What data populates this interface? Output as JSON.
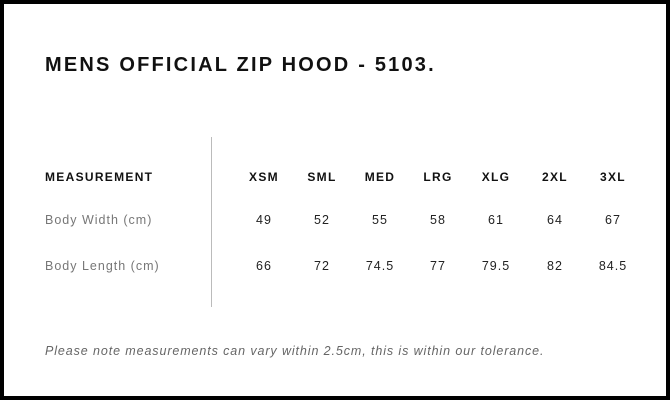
{
  "title": "MENS OFFICIAL ZIP HOOD - 5103.",
  "table": {
    "header_label": "MEASUREMENT",
    "sizes": [
      "XSM",
      "SML",
      "MED",
      "LRG",
      "XLG",
      "2XL",
      "3XL"
    ],
    "rows": [
      {
        "label": "Body Width (cm)",
        "values": [
          "49",
          "52",
          "55",
          "58",
          "61",
          "64",
          "67"
        ]
      },
      {
        "label": "Body Length (cm)",
        "values": [
          "66",
          "72",
          "74.5",
          "77",
          "79.5",
          "82",
          "84.5"
        ]
      }
    ]
  },
  "note": "Please note measurements can vary within 2.5cm, this is within our tolerance."
}
